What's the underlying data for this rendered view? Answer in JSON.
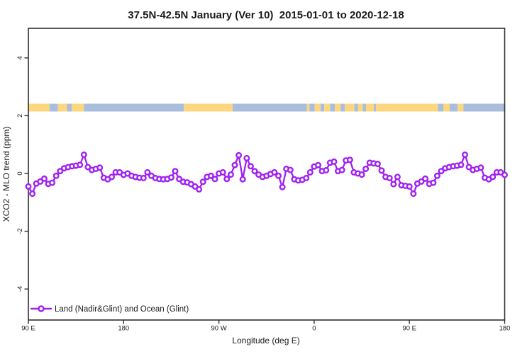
{
  "header": {
    "title": "37.5N-42.5N January (Ver 10)  2015-01-01 to 2020-12-18"
  },
  "chart_data": {
    "type": "line",
    "title": "37.5N-42.5N January (Ver 10)  2015-01-01 to 2020-12-18",
    "xlabel": "Longitude (deg E)",
    "ylabel": "XCO2 - MLO trend (ppm)",
    "xlim_deg": [
      90,
      540
    ],
    "ylim": [
      -5,
      5
    ],
    "grid": false,
    "x_step_deg": 3.75,
    "x_start_deg": 90,
    "x_ticks": [
      {
        "deg": 90,
        "label": "90 E"
      },
      {
        "deg": 180,
        "label": "180"
      },
      {
        "deg": 270,
        "label": "90 W"
      },
      {
        "deg": 360,
        "label": "0"
      },
      {
        "deg": 450,
        "label": "90 E"
      },
      {
        "deg": 540,
        "label": "180"
      }
    ],
    "y_ticks": [
      {
        "v": 4,
        "label": "4"
      },
      {
        "v": 2,
        "label": "2"
      },
      {
        "v": 0,
        "label": "0"
      },
      {
        "v": -2,
        "label": "-2"
      },
      {
        "v": -4,
        "label": "-4"
      }
    ],
    "series": [
      {
        "name": "Land (Nadir&Glint) and Ocean (Glint)",
        "color": "#A020F0",
        "marker": "open-circle",
        "values": [
          -0.45,
          -0.7,
          -0.35,
          -0.28,
          -0.18,
          -0.36,
          -0.32,
          -0.08,
          0.08,
          0.18,
          0.22,
          0.25,
          0.27,
          0.3,
          0.65,
          0.22,
          0.12,
          0.16,
          0.2,
          -0.15,
          -0.2,
          -0.12,
          0.04,
          0.04,
          -0.05,
          0.0,
          -0.08,
          -0.12,
          -0.15,
          -0.16,
          0.04,
          -0.08,
          -0.16,
          -0.19,
          -0.2,
          -0.19,
          -0.14,
          0.08,
          -0.19,
          -0.29,
          -0.31,
          -0.37,
          -0.45,
          -0.55,
          -0.29,
          -0.12,
          -0.08,
          -0.19,
          0.0,
          0.04,
          -0.19,
          -0.04,
          0.29,
          0.63,
          -0.2,
          0.53,
          0.25,
          0.08,
          -0.04,
          -0.12,
          -0.08,
          -0.02,
          0.04,
          -0.08,
          -0.47,
          0.16,
          0.12,
          -0.2,
          -0.24,
          -0.22,
          -0.16,
          0.04,
          0.24,
          0.29,
          0.08,
          0.11,
          0.37,
          0.41,
          0.08,
          0.12,
          0.45,
          0.47,
          0.04,
          0.0,
          -0.04,
          0.16,
          0.37,
          0.35,
          0.33,
          0.1,
          -0.12,
          -0.16,
          -0.37,
          -0.12,
          -0.41,
          -0.43,
          -0.45,
          -0.7,
          -0.35,
          -0.28,
          -0.18,
          -0.36,
          -0.32,
          -0.08,
          0.08,
          0.18,
          0.22,
          0.25,
          0.27,
          0.3,
          0.65,
          0.22,
          0.12,
          0.16,
          0.2,
          -0.15,
          -0.2,
          -0.12,
          0.04,
          0.04,
          -0.05
        ]
      }
    ],
    "land_ocean_band": {
      "y_center": 2.28,
      "land_color": "#FCD77F",
      "ocean_color": "#A9BEDC",
      "segments": [
        {
          "from": 90,
          "to": 110,
          "type": "land"
        },
        {
          "from": 110,
          "to": 118,
          "type": "ocean"
        },
        {
          "from": 118,
          "to": 126.5,
          "type": "land"
        },
        {
          "from": 126.5,
          "to": 131,
          "type": "ocean"
        },
        {
          "from": 131,
          "to": 142.5,
          "type": "land"
        },
        {
          "from": 142.5,
          "to": 237,
          "type": "ocean"
        },
        {
          "from": 237,
          "to": 283,
          "type": "land"
        },
        {
          "from": 283,
          "to": 353,
          "type": "ocean"
        },
        {
          "from": 353,
          "to": 355.5,
          "type": "land"
        },
        {
          "from": 355.5,
          "to": 360.5,
          "type": "ocean"
        },
        {
          "from": 360.5,
          "to": 366,
          "type": "land"
        },
        {
          "from": 366,
          "to": 369.5,
          "type": "ocean"
        },
        {
          "from": 369.5,
          "to": 375,
          "type": "land"
        },
        {
          "from": 375,
          "to": 379.5,
          "type": "ocean"
        },
        {
          "from": 379.5,
          "to": 385,
          "type": "land"
        },
        {
          "from": 385,
          "to": 389,
          "type": "ocean"
        },
        {
          "from": 389,
          "to": 398,
          "type": "land"
        },
        {
          "from": 398,
          "to": 401.5,
          "type": "ocean"
        },
        {
          "from": 401.5,
          "to": 406,
          "type": "land"
        },
        {
          "from": 406,
          "to": 409,
          "type": "ocean"
        },
        {
          "from": 409,
          "to": 416.5,
          "type": "land"
        },
        {
          "from": 416.5,
          "to": 418.5,
          "type": "ocean"
        },
        {
          "from": 418.5,
          "to": 477,
          "type": "land"
        },
        {
          "from": 477,
          "to": 482,
          "type": "ocean"
        },
        {
          "from": 482,
          "to": 488,
          "type": "land"
        },
        {
          "from": 488,
          "to": 495.5,
          "type": "ocean"
        },
        {
          "from": 495.5,
          "to": 501,
          "type": "land"
        },
        {
          "from": 501,
          "to": 540,
          "type": "ocean"
        }
      ]
    },
    "legend": {
      "label": "Land (Nadir&Glint) and Ocean (Glint)",
      "position": "bottom-left"
    }
  }
}
